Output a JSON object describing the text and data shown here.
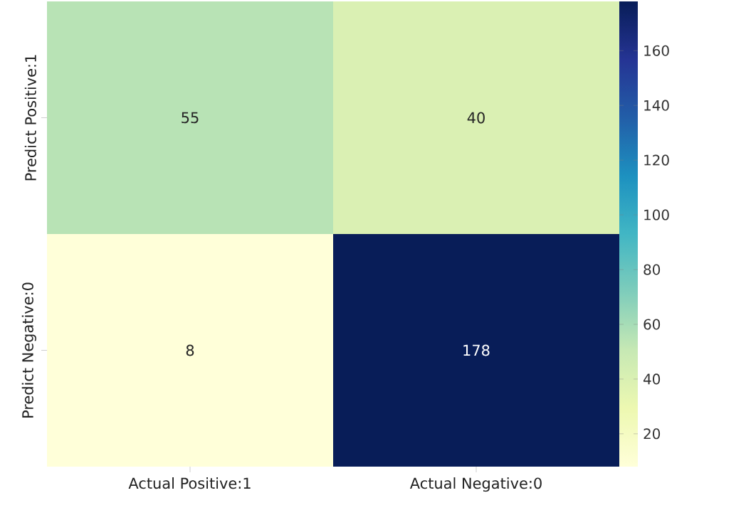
{
  "chart_data": {
    "type": "heatmap",
    "categories": [
      "Actual Positive:1",
      "Actual Negative:0"
    ],
    "y_categories": [
      "Predict Positive:1",
      "Predict Negative:0"
    ],
    "cells": [
      [
        55,
        40
      ],
      [
        8,
        178
      ]
    ],
    "clim": [
      8,
      178
    ],
    "cticks": [
      20,
      40,
      60,
      80,
      100,
      120,
      140,
      160
    ],
    "data_labels": true
  }
}
